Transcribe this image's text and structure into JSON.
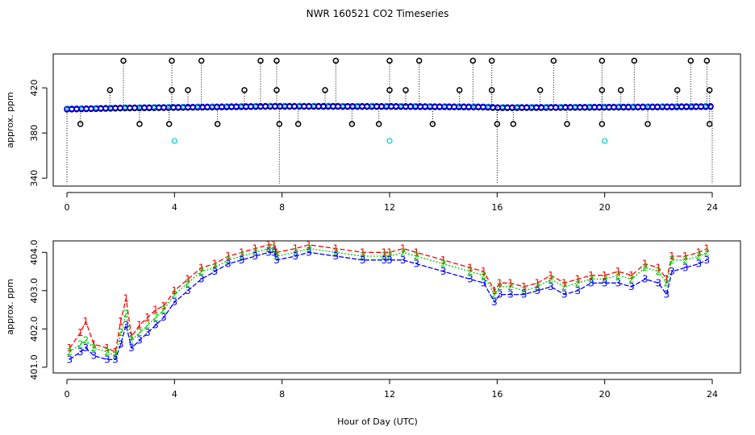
{
  "title": "NWR  160521  CO2 Timeseries",
  "xlabel": "Hour of Day (UTC)",
  "colors": {
    "black": "#000000",
    "blue": "#0000ff",
    "cyan": "#00cccc",
    "red": "#ff0000",
    "green": "#00cc00"
  },
  "chart_data": [
    {
      "type": "scatter",
      "ylabel": "approx. ppm",
      "xlim": [
        0,
        24
      ],
      "ylim": [
        333,
        450
      ],
      "xticks": [
        0,
        4,
        8,
        12,
        16,
        20,
        24
      ],
      "yticks": [
        340,
        380,
        420
      ],
      "xtick_labels": [
        "0",
        "4",
        "8",
        "12",
        "16",
        "20",
        "24"
      ],
      "ytick_labels": [
        "340",
        "380",
        "420"
      ],
      "baseline": [
        [
          0.0,
          401.5
        ],
        [
          2.0,
          402.5
        ],
        [
          4.0,
          403.0
        ],
        [
          7.5,
          404.0
        ],
        [
          12.0,
          403.9
        ],
        [
          15.5,
          403.4
        ],
        [
          16.0,
          402.8
        ],
        [
          20.0,
          403.2
        ],
        [
          24.0,
          403.8
        ]
      ],
      "spikes_high": [
        2.1,
        3.9,
        5.0,
        7.2,
        7.8,
        10.0,
        12.0,
        13.1,
        15.1,
        15.8,
        18.1,
        19.9,
        21.1,
        23.2,
        23.8
      ],
      "spikes_mid": [
        1.6,
        3.9,
        4.5,
        6.6,
        7.8,
        9.6,
        12.0,
        12.6,
        14.6,
        15.8,
        17.6,
        19.9,
        20.6,
        22.7,
        23.9
      ],
      "spikes_low": [
        0.5,
        2.7,
        3.8,
        5.6,
        7.9,
        8.6,
        10.6,
        11.6,
        13.6,
        16.0,
        16.6,
        18.6,
        19.9,
        21.6,
        23.9
      ],
      "dips": [
        0.0,
        7.9,
        16.0,
        24.0
      ],
      "cyan_points": [
        [
          4.0,
          373
        ],
        [
          12.0,
          373
        ],
        [
          20.0,
          373
        ]
      ]
    },
    {
      "type": "line",
      "ylabel": "approx. ppm",
      "xlim": [
        0,
        24
      ],
      "ylim": [
        400.85,
        404.3
      ],
      "xticks": [
        0,
        4,
        8,
        12,
        16,
        20,
        24
      ],
      "yticks": [
        401.0,
        402.0,
        403.0,
        404.0
      ],
      "xtick_labels": [
        "0",
        "4",
        "8",
        "12",
        "16",
        "20",
        "24"
      ],
      "ytick_labels": [
        "401.0",
        "402.0",
        "403.0",
        "404.0"
      ],
      "series_markers": [
        "1",
        "2",
        "3"
      ],
      "series": [
        {
          "marker": "1",
          "x": [
            0.1,
            0.5,
            0.7,
            1.0,
            1.5,
            1.8,
            2.0,
            2.2,
            2.4,
            2.7,
            3.0,
            3.3,
            3.6,
            4.0,
            4.5,
            5.0,
            5.5,
            6.0,
            6.5,
            7.0,
            7.5,
            7.7,
            7.8,
            8.5,
            9.0,
            10.0,
            11.0,
            11.8,
            12.0,
            12.5,
            13.0,
            14.0,
            15.0,
            15.5,
            15.9,
            16.1,
            16.5,
            17.0,
            17.5,
            18.0,
            18.5,
            19.0,
            19.5,
            20.0,
            20.5,
            21.0,
            21.5,
            22.0,
            22.3,
            22.5,
            23.0,
            23.5,
            23.8
          ],
          "y": [
            401.5,
            401.9,
            402.2,
            401.6,
            401.5,
            401.4,
            402.2,
            402.8,
            401.8,
            402.1,
            402.3,
            402.5,
            402.6,
            403.0,
            403.3,
            403.6,
            403.7,
            403.9,
            404.0,
            404.1,
            404.2,
            404.2,
            404.0,
            404.1,
            404.2,
            404.1,
            404.0,
            404.0,
            404.0,
            404.1,
            404.0,
            403.8,
            403.6,
            403.5,
            403.0,
            403.2,
            403.2,
            403.1,
            403.2,
            403.4,
            403.2,
            403.3,
            403.4,
            403.4,
            403.5,
            403.4,
            403.7,
            403.6,
            403.3,
            403.9,
            403.9,
            404.0,
            404.1
          ]
        },
        {
          "marker": "2",
          "x": [
            0.1,
            0.5,
            0.7,
            1.0,
            1.5,
            1.8,
            2.0,
            2.2,
            2.4,
            2.7,
            3.0,
            3.3,
            3.6,
            4.0,
            4.5,
            5.0,
            5.5,
            6.0,
            6.5,
            7.0,
            7.5,
            7.7,
            7.8,
            8.5,
            9.0,
            10.0,
            11.0,
            11.8,
            12.0,
            12.5,
            13.0,
            14.0,
            15.0,
            15.5,
            15.9,
            16.1,
            16.5,
            17.0,
            17.5,
            18.0,
            18.5,
            19.0,
            19.5,
            20.0,
            20.5,
            21.0,
            21.5,
            22.0,
            22.3,
            22.5,
            23.0,
            23.5,
            23.8
          ],
          "y": [
            401.4,
            401.6,
            401.7,
            401.5,
            401.4,
            401.3,
            401.9,
            402.4,
            401.7,
            401.9,
            402.1,
            402.3,
            402.5,
            402.9,
            403.2,
            403.5,
            403.6,
            403.8,
            403.9,
            404.0,
            404.1,
            404.1,
            403.9,
            404.0,
            404.1,
            404.0,
            403.9,
            403.9,
            403.9,
            404.0,
            403.9,
            403.7,
            403.5,
            403.4,
            402.9,
            403.1,
            403.1,
            403.0,
            403.1,
            403.3,
            403.1,
            403.2,
            403.3,
            403.3,
            403.4,
            403.3,
            403.6,
            403.5,
            403.2,
            403.8,
            403.8,
            403.9,
            404.0
          ]
        },
        {
          "marker": "3",
          "x": [
            0.1,
            0.5,
            0.7,
            1.0,
            1.5,
            1.8,
            2.0,
            2.2,
            2.4,
            2.7,
            3.0,
            3.3,
            3.6,
            4.0,
            4.5,
            5.0,
            5.5,
            6.0,
            6.5,
            7.0,
            7.5,
            7.7,
            7.8,
            8.5,
            9.0,
            10.0,
            11.0,
            11.8,
            12.0,
            12.5,
            13.0,
            14.0,
            15.0,
            15.5,
            15.9,
            16.1,
            16.5,
            17.0,
            17.5,
            18.0,
            18.5,
            19.0,
            19.5,
            20.0,
            20.5,
            21.0,
            21.5,
            22.0,
            22.3,
            22.5,
            23.0,
            23.5,
            23.8
          ],
          "y": [
            401.2,
            401.4,
            401.5,
            401.3,
            401.2,
            401.2,
            401.6,
            402.1,
            401.5,
            401.7,
            401.9,
            402.1,
            402.3,
            402.7,
            403.0,
            403.3,
            403.5,
            403.7,
            403.8,
            403.9,
            404.0,
            404.0,
            403.8,
            403.9,
            404.0,
            403.9,
            403.8,
            403.8,
            403.8,
            403.8,
            403.7,
            403.5,
            403.3,
            403.2,
            402.7,
            402.9,
            402.9,
            402.9,
            403.0,
            403.1,
            402.9,
            403.0,
            403.2,
            403.2,
            403.2,
            403.1,
            403.3,
            403.2,
            402.9,
            403.5,
            403.6,
            403.7,
            403.8
          ]
        }
      ]
    }
  ]
}
